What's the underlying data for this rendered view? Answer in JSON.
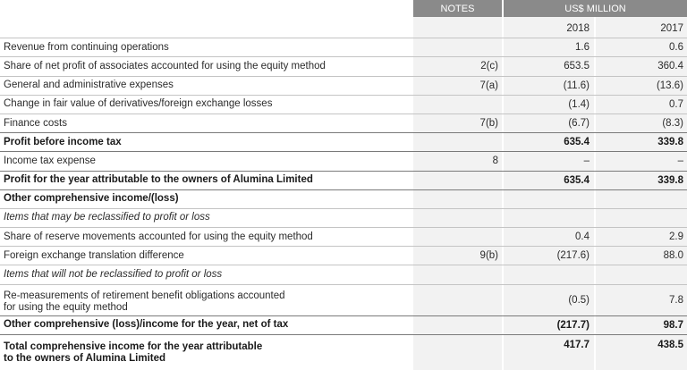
{
  "header": {
    "notes_label": "NOTES",
    "currency_label": "US$ MILLION"
  },
  "years": [
    "2018",
    "2017"
  ],
  "rows": [
    {
      "label": "",
      "note": "",
      "v2018": "2018",
      "v2017": "2017"
    },
    {
      "label": "Revenue from continuing operations",
      "note": "",
      "v2018": "1.6",
      "v2017": "0.6"
    },
    {
      "label": "Share of net profit of associates accounted for using the equity method",
      "note": "2(c)",
      "v2018": "653.5",
      "v2017": "360.4"
    },
    {
      "label": "General and administrative expenses",
      "note": "7(a)",
      "v2018": "(11.6)",
      "v2017": "(13.6)"
    },
    {
      "label": "Change in fair value of derivatives/foreign exchange losses",
      "note": "",
      "v2018": "(1.4)",
      "v2017": "0.7"
    },
    {
      "label": "Finance costs",
      "note": "7(b)",
      "v2018": "(6.7)",
      "v2017": "(8.3)"
    },
    {
      "label": "Profit before income tax",
      "note": "",
      "v2018": "635.4",
      "v2017": "339.8"
    },
    {
      "label": "Income tax expense",
      "note": "8",
      "v2018": "–",
      "v2017": "–"
    },
    {
      "label": "Profit for the year attributable to the owners of Alumina Limited",
      "note": "",
      "v2018": "635.4",
      "v2017": "339.8"
    },
    {
      "label": "Other comprehensive income/(loss)",
      "note": "",
      "v2018": "",
      "v2017": ""
    },
    {
      "label": "Items that may be reclassified to profit or loss",
      "note": "",
      "v2018": "",
      "v2017": ""
    },
    {
      "label": "Share of reserve movements accounted for using the equity method",
      "note": "",
      "v2018": "0.4",
      "v2017": "2.9"
    },
    {
      "label": "Foreign exchange translation difference",
      "note": "9(b)",
      "v2018": "(217.6)",
      "v2017": "88.0"
    },
    {
      "label": "Items that will not be reclassified to profit or loss",
      "note": "",
      "v2018": "",
      "v2017": ""
    },
    {
      "label": "Re-measurements of retirement benefit obligations accounted\nfor using the equity method",
      "note": "",
      "v2018": "(0.5)",
      "v2017": "7.8"
    },
    {
      "label": "Other comprehensive (loss)/income for the year, net of tax",
      "note": "",
      "v2018": "(217.7)",
      "v2017": "98.7"
    },
    {
      "label": "Total comprehensive income for the year attributable\nto the owners of Alumina Limited",
      "note": "",
      "v2018": "417.7",
      "v2017": "438.5"
    }
  ]
}
